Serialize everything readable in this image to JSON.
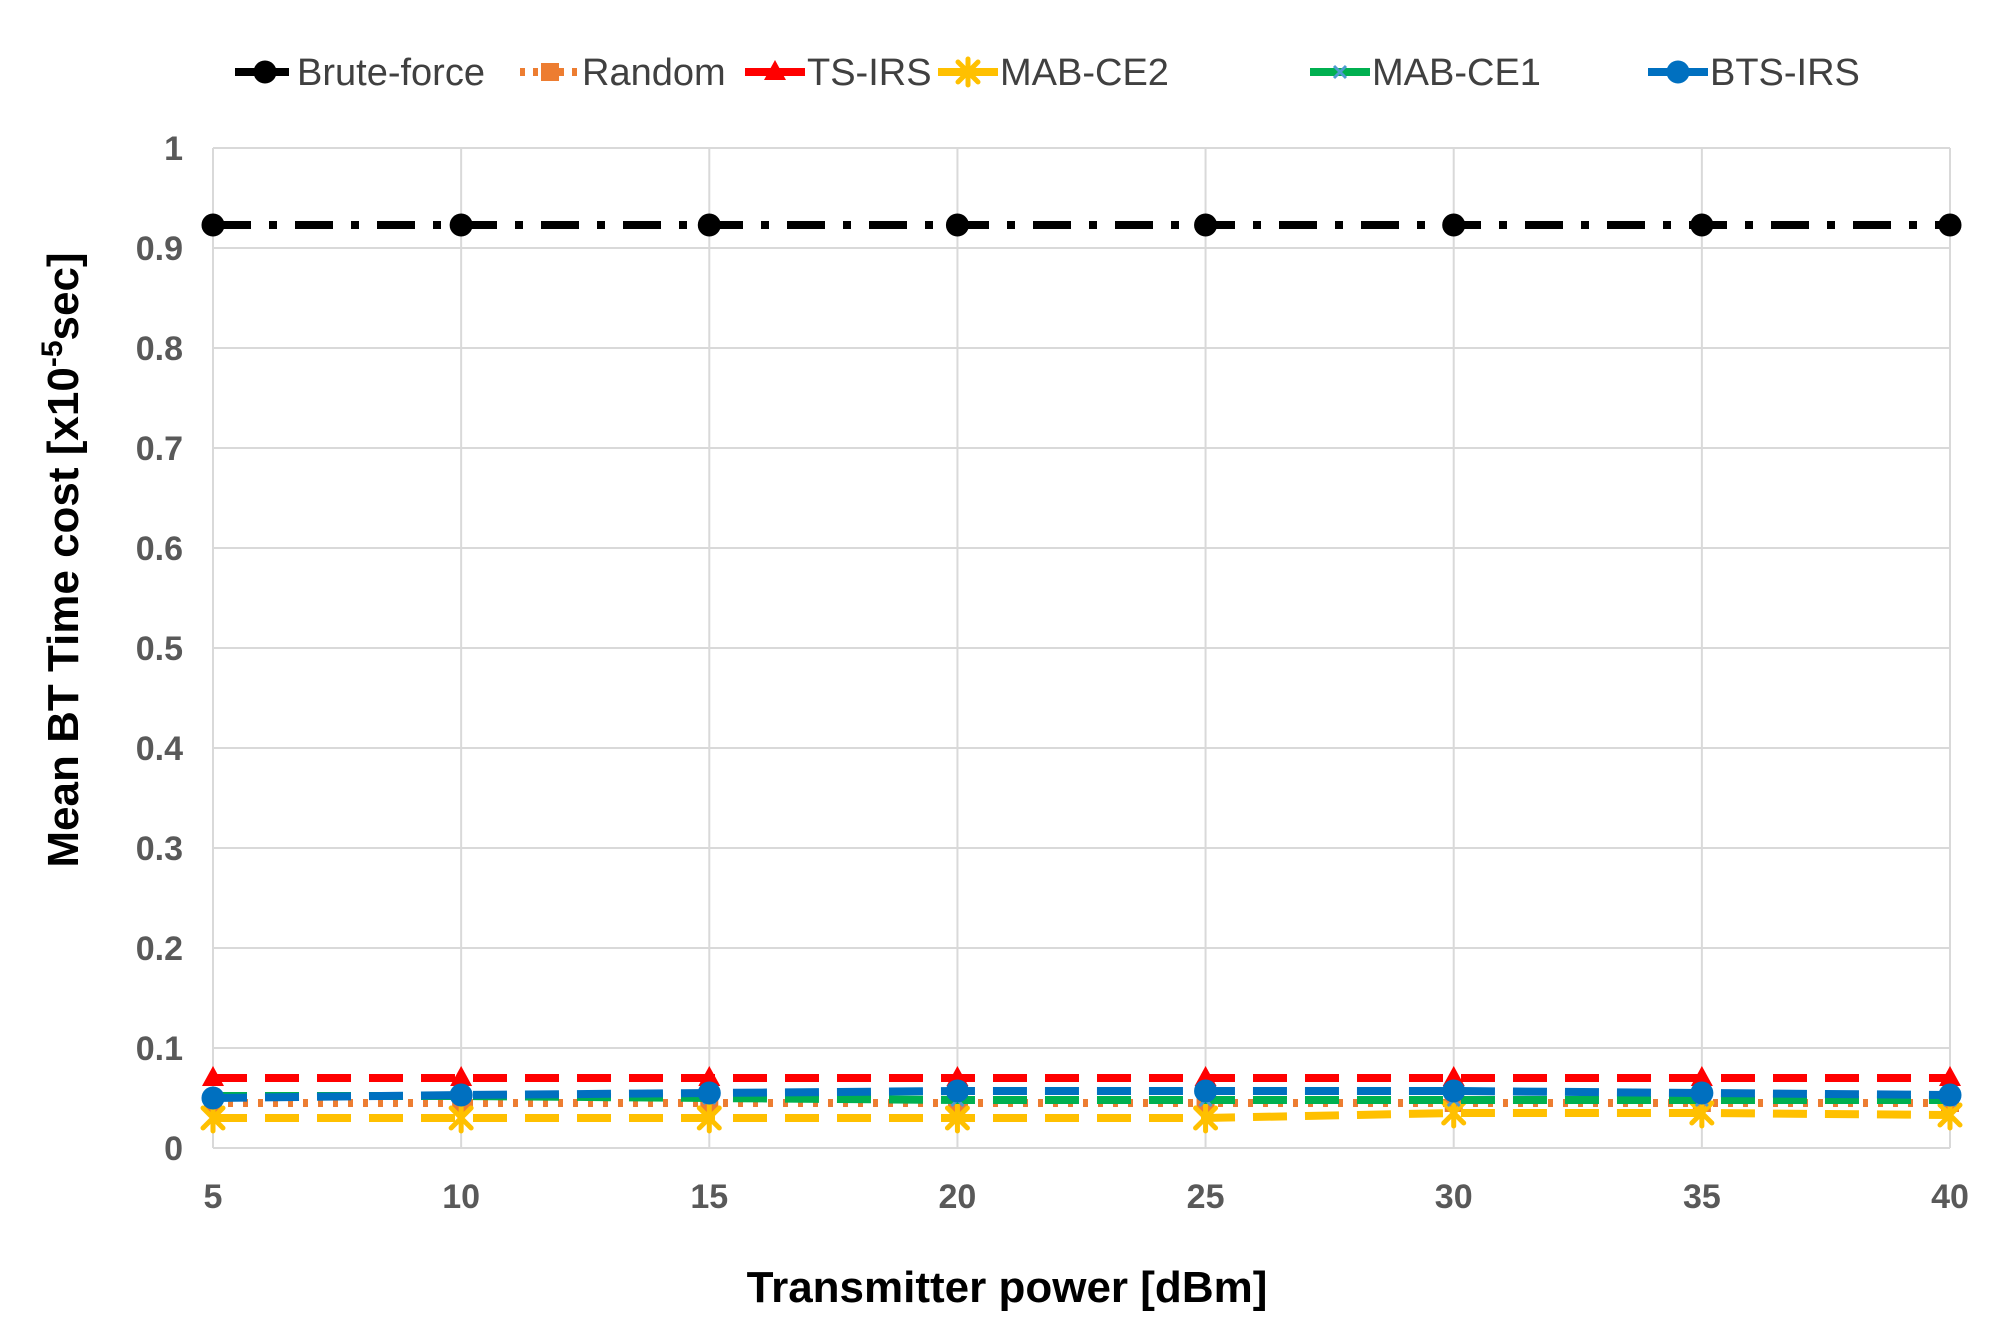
{
  "chart_data": {
    "type": "line",
    "title": "",
    "xlabel": "Transmitter power [dBm]",
    "ylabel_main": "Mean BT Time cost [x10",
    "ylabel_sup": "-5",
    "ylabel_tail": "sec]",
    "x": [
      5,
      10,
      15,
      20,
      25,
      30,
      35,
      40
    ],
    "xlim": [
      5,
      40
    ],
    "ylim": [
      0,
      1
    ],
    "x_ticks": [
      "5",
      "10",
      "15",
      "20",
      "25",
      "30",
      "35",
      "40"
    ],
    "y_ticks": [
      "0",
      "0.1",
      "0.2",
      "0.3",
      "0.4",
      "0.5",
      "0.6",
      "0.7",
      "0.8",
      "0.9",
      "1"
    ],
    "grid": true,
    "legend_position": "top",
    "series": [
      {
        "name": "Brute-force",
        "color": "#000000",
        "marker": "circle",
        "dash": "dashdot",
        "values": [
          0.923,
          0.923,
          0.923,
          0.923,
          0.923,
          0.923,
          0.923,
          0.923
        ]
      },
      {
        "name": "Random",
        "color": "#ED7D31",
        "marker": "square",
        "dash": "dot",
        "values": [
          0.045,
          0.045,
          0.045,
          0.045,
          0.045,
          0.045,
          0.045,
          0.045
        ]
      },
      {
        "name": "TS-IRS",
        "color": "#FF0000",
        "marker": "triangle",
        "dash": "dash",
        "values": [
          0.07,
          0.07,
          0.07,
          0.07,
          0.07,
          0.07,
          0.07,
          0.07
        ]
      },
      {
        "name": "MAB-CE2",
        "color": "#FFC000",
        "marker": "star",
        "dash": "dash",
        "values": [
          0.03,
          0.03,
          0.03,
          0.03,
          0.03,
          0.035,
          0.035,
          0.033
        ]
      },
      {
        "name": "MAB-CE1",
        "color": "#00B050",
        "marker": "x",
        "dash": "dash",
        "values": [
          0.052,
          0.052,
          0.05,
          0.048,
          0.048,
          0.048,
          0.048,
          0.048
        ]
      },
      {
        "name": "BTS-IRS",
        "color": "#0070C0",
        "marker": "circle",
        "dash": "dash",
        "values": [
          0.05,
          0.053,
          0.055,
          0.057,
          0.057,
          0.057,
          0.055,
          0.053
        ]
      }
    ]
  }
}
